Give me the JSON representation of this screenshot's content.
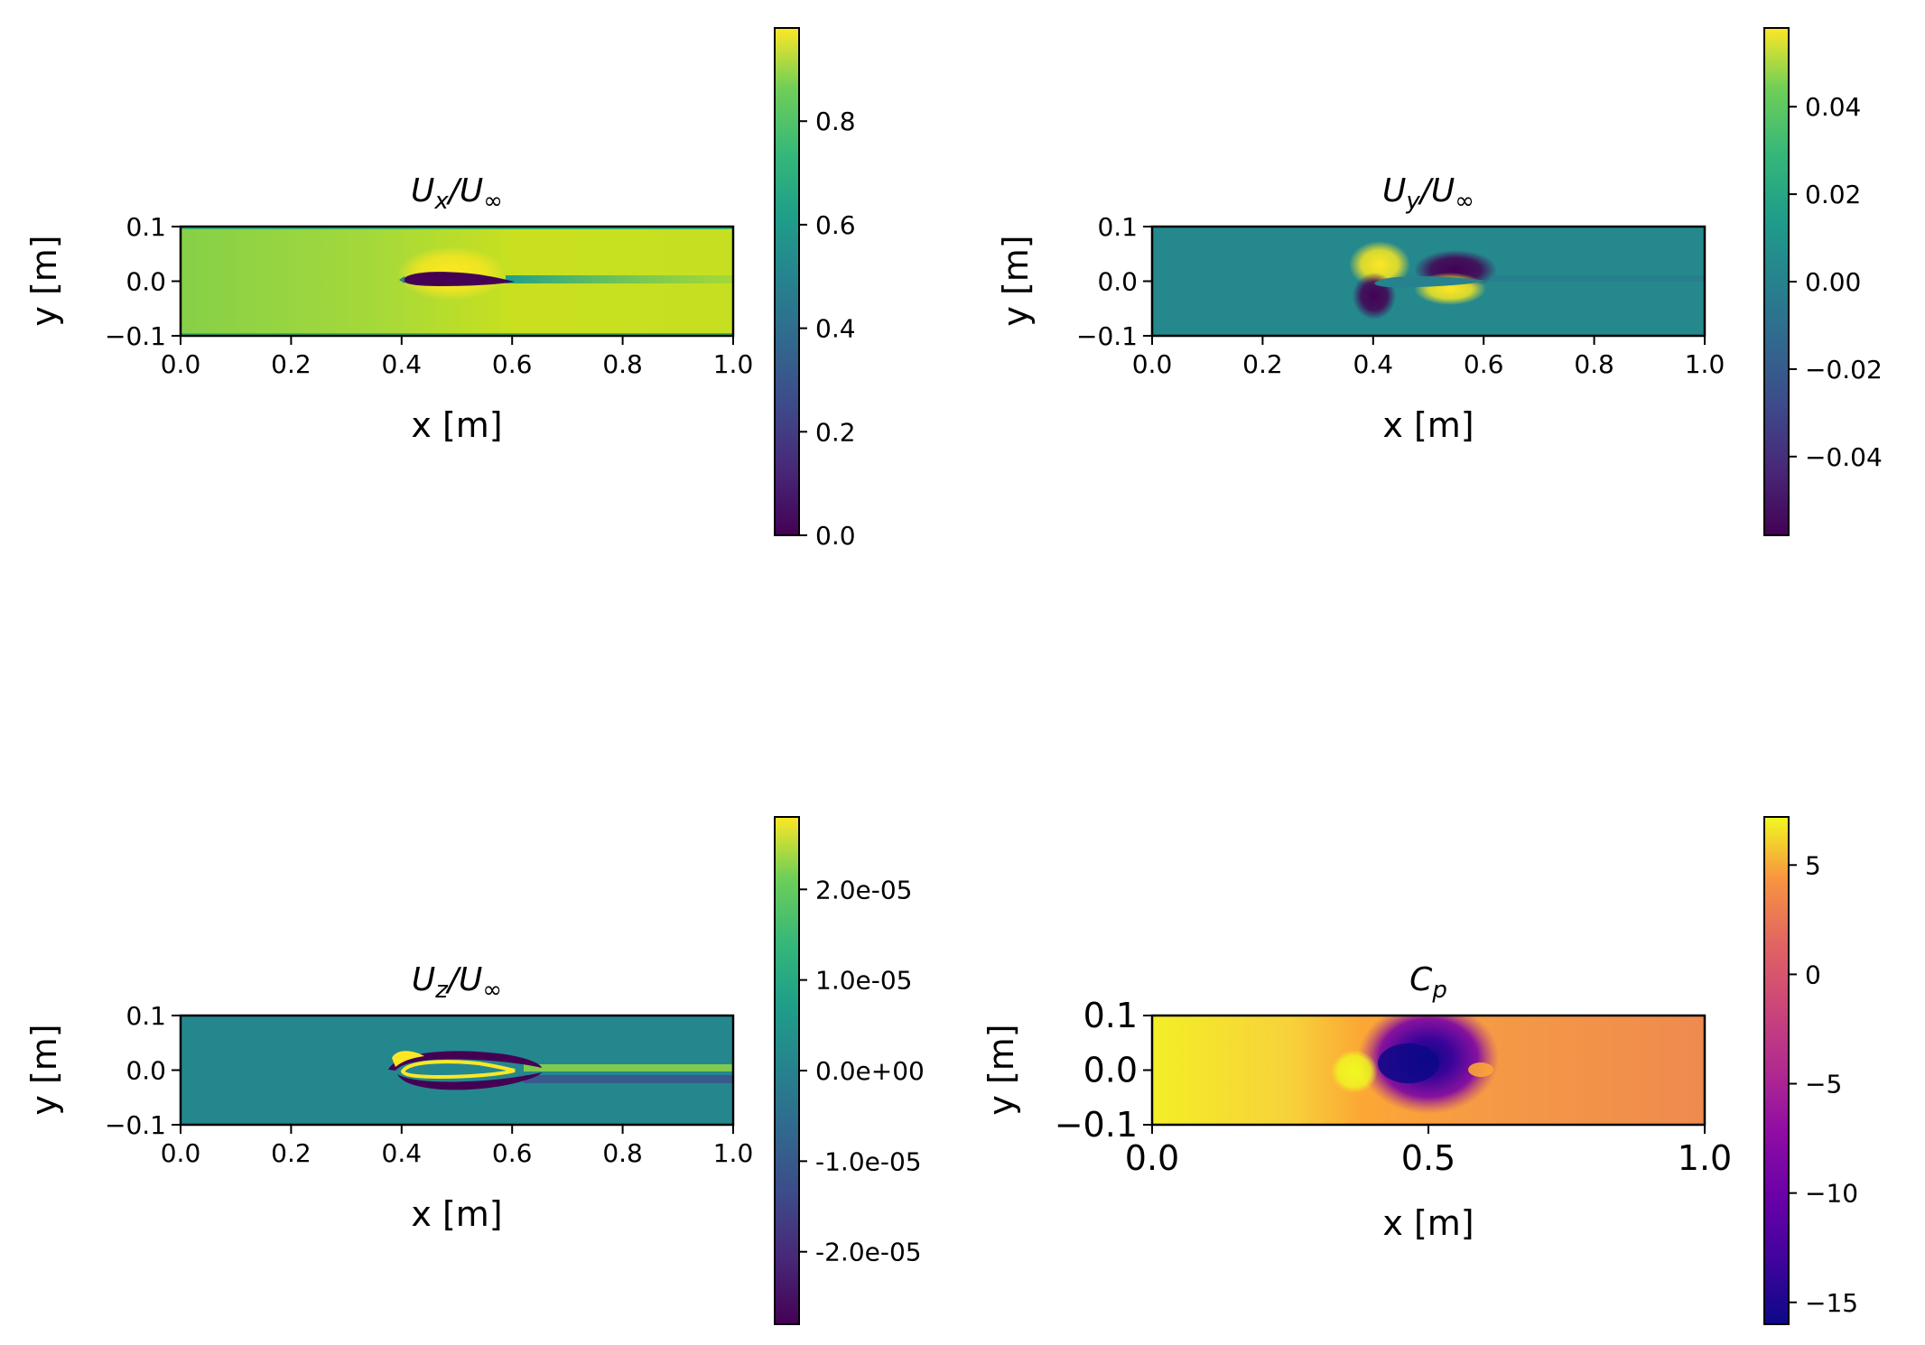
{
  "chart_data": [
    {
      "type": "heatmap",
      "title": "U_x/U_∞",
      "title_parts": {
        "base": "U",
        "sub": "x",
        "rest": "/U",
        "sup": "∞"
      },
      "xlabel": "x [m]",
      "ylabel": "y [m]",
      "xlim": [
        0.0,
        1.0
      ],
      "ylim": [
        -0.1,
        0.1
      ],
      "xticks": [
        "0.0",
        "0.2",
        "0.4",
        "0.6",
        "0.8",
        "1.0"
      ],
      "xtick_values": [
        0.0,
        0.2,
        0.4,
        0.6,
        0.8,
        1.0
      ],
      "yticks": [
        "0.1",
        "0.0",
        "−0.1"
      ],
      "ytick_values": [
        0.1,
        0.0,
        -0.1
      ],
      "colormap": "viridis",
      "colorbar": {
        "range": [
          0.0,
          0.98
        ],
        "ticks": [
          "0.0",
          "0.2",
          "0.4",
          "0.6",
          "0.8"
        ],
        "tick_values": [
          0.0,
          0.2,
          0.4,
          0.6,
          0.8
        ]
      }
    },
    {
      "type": "heatmap",
      "title": "U_y/U_∞",
      "title_parts": {
        "base": "U",
        "sub": "y",
        "rest": "/U",
        "sup": "∞"
      },
      "xlabel": "x [m]",
      "ylabel": "y [m]",
      "xlim": [
        0.0,
        1.0
      ],
      "ylim": [
        -0.1,
        0.1
      ],
      "xticks": [
        "0.0",
        "0.2",
        "0.4",
        "0.6",
        "0.8",
        "1.0"
      ],
      "xtick_values": [
        0.0,
        0.2,
        0.4,
        0.6,
        0.8,
        1.0
      ],
      "yticks": [
        "0.1",
        "0.0",
        "−0.1"
      ],
      "ytick_values": [
        0.1,
        0.0,
        -0.1
      ],
      "colormap": "viridis",
      "colorbar": {
        "range": [
          -0.058,
          0.058
        ],
        "ticks": [
          "0.04",
          "0.02",
          "0.00",
          "−0.02",
          "−0.04"
        ],
        "tick_values": [
          0.04,
          0.02,
          0.0,
          -0.02,
          -0.04
        ]
      }
    },
    {
      "type": "heatmap",
      "title": "U_z/U_∞",
      "title_parts": {
        "base": "U",
        "sub": "z",
        "rest": "/U",
        "sup": "∞"
      },
      "xlabel": "x [m]",
      "ylabel": "y [m]",
      "xlim": [
        0.0,
        1.0
      ],
      "ylim": [
        -0.1,
        0.1
      ],
      "xticks": [
        "0.0",
        "0.2",
        "0.4",
        "0.6",
        "0.8",
        "1.0"
      ],
      "xtick_values": [
        0.0,
        0.2,
        0.4,
        0.6,
        0.8,
        1.0
      ],
      "yticks": [
        "0.1",
        "0.0",
        "−0.1"
      ],
      "ytick_values": [
        0.1,
        0.0,
        -0.1
      ],
      "colormap": "viridis",
      "colorbar": {
        "range": [
          -2.8e-05,
          2.8e-05
        ],
        "ticks": [
          "2.0e-05",
          "1.0e-05",
          "0.0e+00",
          "-1.0e-05",
          "-2.0e-05"
        ],
        "tick_values": [
          2e-05,
          1e-05,
          0.0,
          -1e-05,
          -2e-05
        ]
      }
    },
    {
      "type": "heatmap",
      "title": "C_p",
      "title_parts": {
        "base": "C",
        "sub": "p",
        "rest": "",
        "sup": ""
      },
      "xlabel": "x [m]",
      "ylabel": "y [m]",
      "xlim": [
        0.0,
        1.0
      ],
      "ylim": [
        -0.1,
        0.1
      ],
      "xticks": [
        "0.0",
        "0.5",
        "1.0"
      ],
      "xtick_values": [
        0.0,
        0.5,
        1.0
      ],
      "yticks": [
        "0.1",
        "0.0",
        "−0.1"
      ],
      "ytick_values": [
        0.1,
        0.0,
        -0.1
      ],
      "colormap": "plasma",
      "colorbar": {
        "range": [
          -16.0,
          7.2
        ],
        "ticks": [
          "5",
          "0",
          "−5",
          "−10",
          "−15"
        ],
        "tick_values": [
          5,
          0,
          -5,
          -10,
          -15
        ]
      }
    }
  ]
}
